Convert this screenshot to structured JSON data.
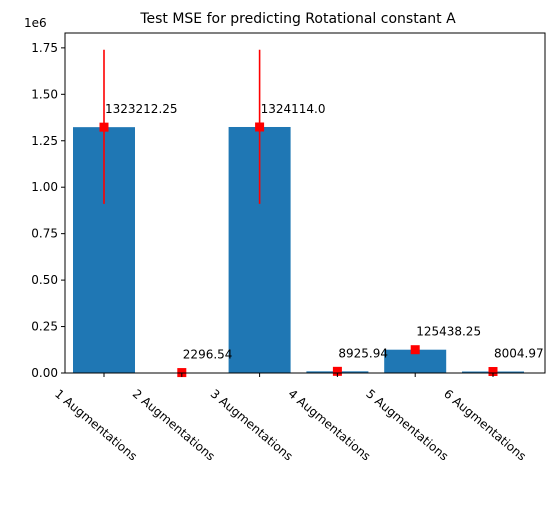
{
  "chart_data": {
    "type": "bar",
    "title": "Test MSE for predicting Rotational constant A",
    "xlabel": "",
    "ylabel": "",
    "y_offset_label": "1e6",
    "categories": [
      "1 Augmentations",
      "2 Augmentations",
      "3 Augmentations",
      "4 Augmentations",
      "5 Augmentations",
      "6 Augmentations"
    ],
    "values": [
      1323212.25,
      2296.54,
      1324114.0,
      8925.94,
      125438.25,
      8004.97
    ],
    "data_labels": [
      "1323212.25",
      "2296.54",
      "1324114.0",
      "8925.94",
      "125438.25",
      "8004.97"
    ],
    "error_bars": [
      {
        "low": 910000,
        "high": 1740000
      },
      null,
      {
        "low": 910000,
        "high": 1740000
      },
      null,
      null,
      null
    ],
    "ylim": [
      0,
      1830000
    ],
    "yticks": [
      0,
      250000,
      500000,
      750000,
      1000000,
      1250000,
      1500000,
      1750000
    ],
    "ytick_labels": [
      "0.00",
      "0.25",
      "0.50",
      "0.75",
      "1.00",
      "1.25",
      "1.50",
      "1.75"
    ],
    "grid": false,
    "legend": "none",
    "colors": {
      "bar": "#1f77b4",
      "marker": "#ff0000",
      "error": "#ff0000"
    }
  }
}
